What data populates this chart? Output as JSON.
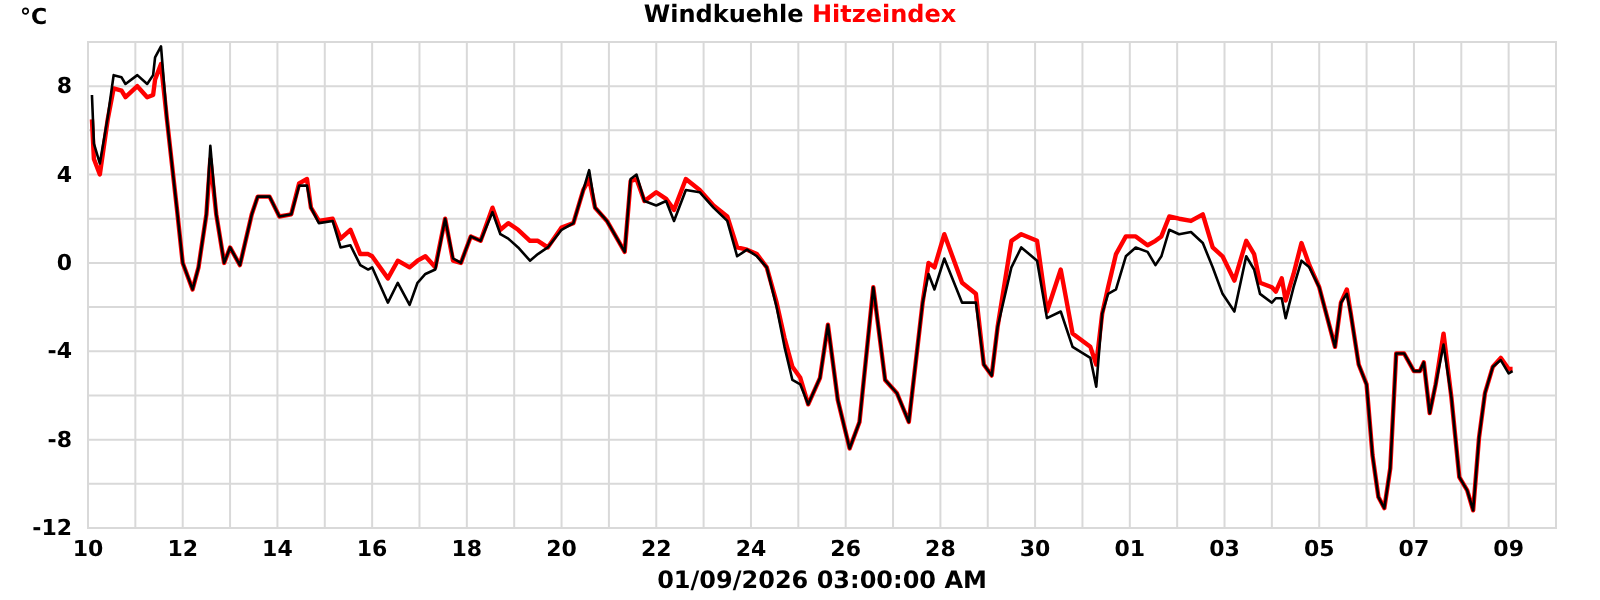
{
  "chart_data": {
    "type": "line",
    "xlabel": "01/09/2026 03:00:00 AM",
    "ylabel": "°C",
    "legend": "top",
    "grid": true,
    "xlim": [
      "2025-12-10",
      "2026-01-10"
    ],
    "ylim": [
      -12,
      10
    ],
    "xticks": [
      {
        "value": "2025-12-10",
        "label": "10"
      },
      {
        "value": "2025-12-11",
        "label": null
      },
      {
        "value": "2025-12-12",
        "label": "12"
      },
      {
        "value": "2025-12-13",
        "label": null
      },
      {
        "value": "2025-12-14",
        "label": "14"
      },
      {
        "value": "2025-12-15",
        "label": null
      },
      {
        "value": "2025-12-16",
        "label": "16"
      },
      {
        "value": "2025-12-17",
        "label": null
      },
      {
        "value": "2025-12-18",
        "label": "18"
      },
      {
        "value": "2025-12-19",
        "label": null
      },
      {
        "value": "2025-12-20",
        "label": "20"
      },
      {
        "value": "2025-12-21",
        "label": null
      },
      {
        "value": "2025-12-22",
        "label": "22"
      },
      {
        "value": "2025-12-23",
        "label": null
      },
      {
        "value": "2025-12-24",
        "label": "24"
      },
      {
        "value": "2025-12-25",
        "label": null
      },
      {
        "value": "2025-12-26",
        "label": "26"
      },
      {
        "value": "2025-12-27",
        "label": null
      },
      {
        "value": "2025-12-28",
        "label": "28"
      },
      {
        "value": "2025-12-29",
        "label": null
      },
      {
        "value": "2025-12-30",
        "label": "30"
      },
      {
        "value": "2025-12-31",
        "label": null
      },
      {
        "value": "2026-01-01",
        "label": "01"
      },
      {
        "value": "2026-01-02",
        "label": null
      },
      {
        "value": "2026-01-03",
        "label": "03"
      },
      {
        "value": "2026-01-04",
        "label": null
      },
      {
        "value": "2026-01-05",
        "label": "05"
      },
      {
        "value": "2026-01-06",
        "label": null
      },
      {
        "value": "2026-01-07",
        "label": "07"
      },
      {
        "value": "2026-01-08",
        "label": null
      },
      {
        "value": "2026-01-09",
        "label": "09"
      }
    ],
    "yticks": [
      -12,
      {
        "value": -10,
        "label": null
      },
      -8,
      {
        "value": -6,
        "label": null
      },
      -4,
      {
        "value": -2,
        "label": null
      },
      0,
      {
        "value": 2,
        "label": null
      },
      4,
      {
        "value": 6,
        "label": null
      },
      8,
      {
        "value": 10,
        "label": null
      }
    ],
    "x": [
      "2025-12-10T02:00",
      "2025-12-10T03:00",
      "2025-12-10T06:00",
      "2025-12-10T10:00",
      "2025-12-10T13:00",
      "2025-12-10T17:00",
      "2025-12-10T19:00",
      "2025-12-11T01:00",
      "2025-12-11T06:00",
      "2025-12-11T09:00",
      "2025-12-11T10:00",
      "2025-12-11T13:00",
      "2025-12-11T16:00",
      "2025-12-11T21:00",
      "2025-12-12T00:00",
      "2025-12-12T05:00",
      "2025-12-12T08:00",
      "2025-12-12T12:00",
      "2025-12-12T14:00",
      "2025-12-12T17:00",
      "2025-12-12T21:00",
      "2025-12-13T00:00",
      "2025-12-13T05:00",
      "2025-12-13T11:00",
      "2025-12-13T14:00",
      "2025-12-13T20:00",
      "2025-12-14T01:00",
      "2025-12-14T07:00",
      "2025-12-14T11:00",
      "2025-12-14T15:00",
      "2025-12-14T17:00",
      "2025-12-14T21:00",
      "2025-12-15T04:00",
      "2025-12-15T08:00",
      "2025-12-15T13:00",
      "2025-12-15T18:00",
      "2025-12-15T22:00",
      "2025-12-16T00:00",
      "2025-12-16T08:00",
      "2025-12-16T13:00",
      "2025-12-16T19:00",
      "2025-12-16T23:00",
      "2025-12-17T03:00",
      "2025-12-17T08:00",
      "2025-12-17T13:00",
      "2025-12-17T17:00",
      "2025-12-17T21:00",
      "2025-12-18T02:00",
      "2025-12-18T07:00",
      "2025-12-18T13:00",
      "2025-12-18T17:00",
      "2025-12-18T21:00",
      "2025-12-19T02:00",
      "2025-12-19T08:00",
      "2025-12-19T12:00",
      "2025-12-19T17:00",
      "2025-12-20T00:00",
      "2025-12-20T06:00",
      "2025-12-20T11:00",
      "2025-12-20T14:00",
      "2025-12-20T17:00",
      "2025-12-20T23:00",
      "2025-12-21T08:00",
      "2025-12-21T11:00",
      "2025-12-21T14:00",
      "2025-12-21T18:00",
      "2025-12-22T00:00",
      "2025-12-22T05:00",
      "2025-12-22T09:00",
      "2025-12-22T15:00",
      "2025-12-22T22:00",
      "2025-12-23T05:00",
      "2025-12-23T12:00",
      "2025-12-23T17:00",
      "2025-12-23T22:00",
      "2025-12-24T03:00",
      "2025-12-24T08:00",
      "2025-12-24T13:00",
      "2025-12-24T17:00",
      "2025-12-24T21:00",
      "2025-12-25T01:00",
      "2025-12-25T05:00",
      "2025-12-25T11:00",
      "2025-12-25T15:00",
      "2025-12-25T20:00",
      "2025-12-26T02:00",
      "2025-12-26T07:00",
      "2025-12-26T14:00",
      "2025-12-26T20:00",
      "2025-12-27T02:00",
      "2025-12-27T08:00",
      "2025-12-27T15:00",
      "2025-12-27T18:00",
      "2025-12-27T21:00",
      "2025-12-28T02:00",
      "2025-12-28T11:00",
      "2025-12-28T18:00",
      "2025-12-28T22:00",
      "2025-12-29T02:00",
      "2025-12-29T05:00",
      "2025-12-29T12:00",
      "2025-12-29T17:00",
      "2025-12-30T01:00",
      "2025-12-30T06:00",
      "2025-12-30T13:00",
      "2025-12-30T19:00",
      "2025-12-31T04:00",
      "2025-12-31T07:00",
      "2025-12-31T10:00",
      "2025-12-31T13:00",
      "2025-12-31T17:00",
      "2025-12-31T22:00",
      "2026-01-01T03:00",
      "2026-01-01T09:00",
      "2026-01-01T13:00",
      "2026-01-01T16:00",
      "2026-01-01T20:00",
      "2026-01-02T01:00",
      "2026-01-02T07:00",
      "2026-01-02T13:00",
      "2026-01-02T18:00",
      "2026-01-02T23:00",
      "2026-01-03T05:00",
      "2026-01-03T11:00",
      "2026-01-03T15:00",
      "2026-01-03T18:00",
      "2026-01-04T00:00",
      "2026-01-04T02:00",
      "2026-01-04T05:00",
      "2026-01-04T07:00",
      "2026-01-04T11:00",
      "2026-01-04T15:00",
      "2026-01-04T19:00",
      "2026-01-05T00:00",
      "2026-01-05T08:00",
      "2026-01-05T11:00",
      "2026-01-05T14:00",
      "2026-01-05T16:00",
      "2026-01-05T20:00",
      "2026-01-06T00:00",
      "2026-01-06T03:00",
      "2026-01-06T06:00",
      "2026-01-06T09:00",
      "2026-01-06T12:00",
      "2026-01-06T15:00",
      "2026-01-06T19:00",
      "2026-01-07T00:00",
      "2026-01-07T03:00",
      "2026-01-07T05:00",
      "2026-01-07T08:00",
      "2026-01-07T11:00",
      "2026-01-07T15:00",
      "2026-01-07T19:00",
      "2026-01-07T23:00",
      "2026-01-08T03:00",
      "2026-01-08T06:00",
      "2026-01-08T09:00",
      "2026-01-08T12:00",
      "2026-01-08T16:00",
      "2026-01-08T20:00",
      "2026-01-09T00:00",
      "2026-01-09T02:00"
    ],
    "series": [
      {
        "name": "Windkuehle",
        "color": "#000000",
        "values": [
          7.6,
          5.4,
          4.5,
          6.6,
          8.5,
          8.4,
          8.1,
          8.5,
          8.1,
          8.5,
          9.3,
          9.8,
          6.5,
          2.5,
          0,
          -1.2,
          -0.2,
          2.2,
          5.3,
          2.2,
          0,
          0.7,
          -0.1,
          2.2,
          3.0,
          3.0,
          2.1,
          2.2,
          3.5,
          3.5,
          2.5,
          1.8,
          1.9,
          0.7,
          0.8,
          -0.1,
          -0.3,
          -0.2,
          -1.8,
          -0.9,
          -1.9,
          -0.9,
          -0.5,
          -0.3,
          2.0,
          0.2,
          0,
          1.2,
          1.0,
          2.3,
          1.3,
          1.1,
          0.7,
          0.1,
          0.4,
          0.7,
          1.5,
          1.8,
          3.3,
          4.2,
          2.5,
          1.9,
          0.5,
          3.8,
          4.0,
          2.8,
          2.6,
          2.8,
          1.9,
          3.3,
          3.2,
          2.5,
          1.9,
          0.3,
          0.6,
          0.3,
          -0.2,
          -2.0,
          -3.8,
          -5.3,
          -5.5,
          -6.4,
          -5.2,
          -2.8,
          -6.2,
          -8.4,
          -7.2,
          -1.1,
          -5.3,
          -5.9,
          -7.2,
          -1.8,
          -0.5,
          -1.2,
          0.2,
          -1.8,
          -1.8,
          -4.6,
          -5.1,
          -2.9,
          -0.2,
          0.7,
          0.1,
          -2.5,
          -2.2,
          -3.8,
          -4.3,
          -5.6,
          -2.3,
          -1.4,
          -1.2,
          0.3,
          0.7,
          0.5,
          -0.1,
          0.3,
          1.5,
          1.3,
          1.4,
          0.9,
          -0.2,
          -1.4,
          -2.2,
          0.3,
          -0.3,
          -1.4,
          -1.8,
          -1.6,
          -1.6,
          -2.5,
          -1.1,
          0.1,
          -0.2,
          -1.1,
          -3.8,
          -1.8,
          -1.4,
          -2.3,
          -4.6,
          -5.5,
          -8.7,
          -10.6,
          -11.1,
          -9.3,
          -4.1,
          -4.1,
          -4.9,
          -4.9,
          -4.5,
          -6.8,
          -5.5,
          -3.7,
          -6.1,
          -9.7,
          -10.3,
          -11.2,
          -7.9,
          -5.9,
          -4.7,
          -4.4,
          -5.0,
          -4.9
        ]
      },
      {
        "name": "Hitzeindex",
        "color": "#ff0000",
        "values": [
          6.5,
          4.7,
          4.0,
          6.5,
          7.9,
          7.8,
          7.5,
          8.0,
          7.5,
          7.6,
          8.3,
          9.0,
          6.5,
          2.5,
          0,
          -1.2,
          -0.2,
          2.2,
          4.7,
          2.2,
          0,
          0.7,
          -0.1,
          2.2,
          3.0,
          3.0,
          2.1,
          2.2,
          3.6,
          3.8,
          2.5,
          1.9,
          2.0,
          1.1,
          1.5,
          0.4,
          0.4,
          0.3,
          -0.7,
          0.1,
          -0.2,
          0.1,
          0.3,
          -0.2,
          2.0,
          0.1,
          0,
          1.2,
          1.0,
          2.5,
          1.5,
          1.8,
          1.5,
          1.0,
          1.0,
          0.7,
          1.6,
          1.8,
          3.3,
          3.8,
          2.5,
          1.9,
          0.5,
          3.7,
          3.8,
          2.8,
          3.2,
          2.9,
          2.4,
          3.8,
          3.3,
          2.6,
          2.1,
          0.7,
          0.6,
          0.4,
          -0.2,
          -1.8,
          -3.4,
          -4.7,
          -5.2,
          -6.4,
          -5.2,
          -2.8,
          -6.2,
          -8.4,
          -7.2,
          -1.1,
          -5.3,
          -5.9,
          -7.2,
          -1.8,
          0,
          -0.2,
          1.3,
          -0.9,
          -1.4,
          -4.6,
          -5.1,
          -2.9,
          1.0,
          1.3,
          1.0,
          -2.2,
          -0.3,
          -3.2,
          -3.8,
          -4.6,
          -2.3,
          -1.1,
          0.4,
          1.2,
          1.2,
          0.8,
          1.0,
          1.2,
          2.1,
          2.0,
          1.9,
          2.2,
          0.7,
          0.3,
          -0.8,
          1.0,
          0.4,
          -0.9,
          -1.1,
          -1.3,
          -0.7,
          -1.7,
          -0.5,
          0.9,
          -0.1,
          -1.1,
          -3.8,
          -1.8,
          -1.2,
          -2.3,
          -4.6,
          -5.5,
          -8.7,
          -10.6,
          -11.1,
          -9.3,
          -4.1,
          -4.1,
          -4.9,
          -4.9,
          -4.5,
          -6.8,
          -5.5,
          -3.2,
          -6.1,
          -9.7,
          -10.3,
          -11.2,
          -7.9,
          -5.9,
          -4.7,
          -4.3,
          -4.8,
          -4.8
        ]
      }
    ]
  }
}
